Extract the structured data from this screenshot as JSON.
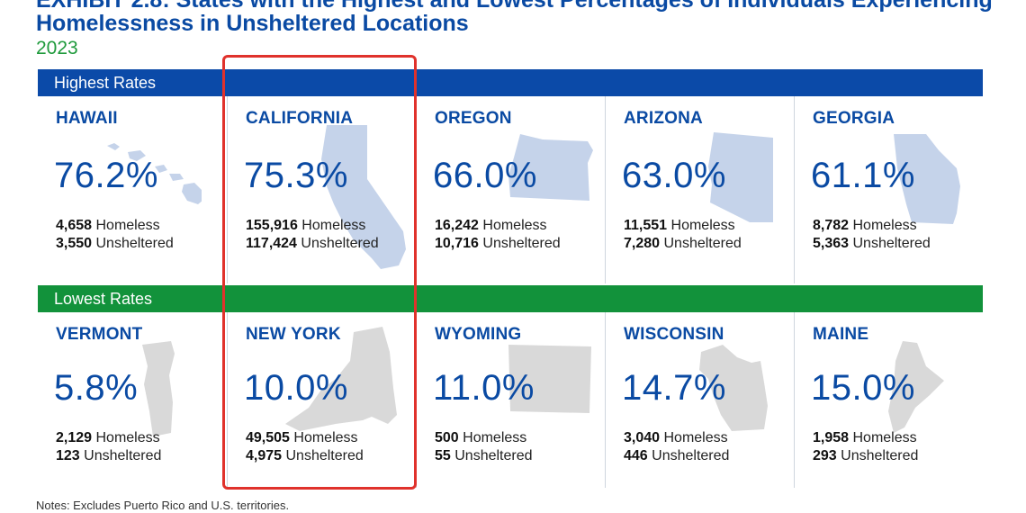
{
  "header": {
    "title_line1": "EXHIBIT 2.8: States with the Highest and Lowest Percentages of Individuals Experiencing",
    "title_line2": "Homelessness in Unsheltered Locations",
    "year": "2023"
  },
  "chart_data": {
    "type": "table",
    "title": "States with the Highest and Lowest Percentages of Individuals Experiencing Homelessness in Unsheltered Locations",
    "subtitle": "2023",
    "groups": [
      {
        "label": "Highest Rates",
        "color": "#0b4aa8",
        "states": [
          {
            "name": "HAWAII",
            "percent": "76.2%",
            "homeless": "4,658",
            "unsheltered": "3,550"
          },
          {
            "name": "CALIFORNIA",
            "percent": "75.3%",
            "homeless": "155,916",
            "unsheltered": "117,424"
          },
          {
            "name": "OREGON",
            "percent": "66.0%",
            "homeless": "16,242",
            "unsheltered": "10,716"
          },
          {
            "name": "ARIZONA",
            "percent": "63.0%",
            "homeless": "11,551",
            "unsheltered": "7,280"
          },
          {
            "name": "GEORGIA",
            "percent": "61.1%",
            "homeless": "8,782",
            "unsheltered": "5,363"
          }
        ]
      },
      {
        "label": "Lowest Rates",
        "color": "#12923b",
        "states": [
          {
            "name": "VERMONT",
            "percent": "5.8%",
            "homeless": "2,129",
            "unsheltered": "123"
          },
          {
            "name": "NEW YORK",
            "percent": "10.0%",
            "homeless": "49,505",
            "unsheltered": "4,975"
          },
          {
            "name": "WYOMING",
            "percent": "11.0%",
            "homeless": "500",
            "unsheltered": "55"
          },
          {
            "name": "WISCONSIN",
            "percent": "14.7%",
            "homeless": "3,040",
            "unsheltered": "446"
          },
          {
            "name": "MAINE",
            "percent": "15.0%",
            "homeless": "1,958",
            "unsheltered": "293"
          }
        ]
      }
    ],
    "homeless_label": "Homeless",
    "unsheltered_label": "Unsheltered",
    "highlighted_column": "CALIFORNIA / NEW YORK",
    "highlight_color": "#e0322c"
  },
  "notes": "Notes: Excludes Puerto Rico and U.S. territories."
}
